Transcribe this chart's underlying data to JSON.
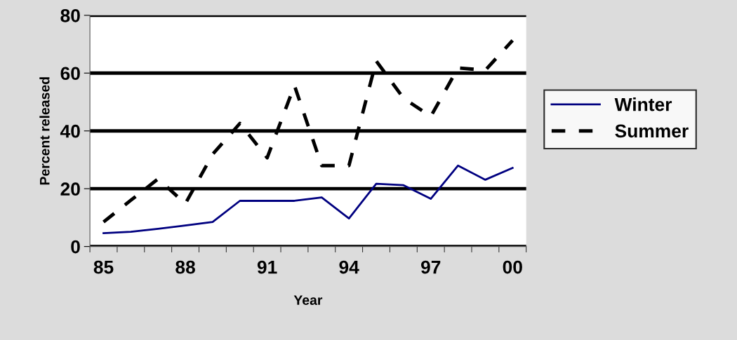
{
  "chart_data": {
    "type": "line",
    "xlabel": "Year",
    "ylabel": "Percent released",
    "categories": [
      "85",
      null,
      null,
      "88",
      null,
      null,
      "91",
      null,
      null,
      "94",
      null,
      null,
      "97",
      null,
      null,
      "00"
    ],
    "series": [
      {
        "name": "Winter",
        "color": "#000080",
        "line_style": "solid",
        "values": [
          4.6,
          5.1,
          6.1,
          7.3,
          8.5,
          15.8,
          15.8,
          15.8,
          17,
          9.7,
          21.7,
          21.2,
          16.5,
          28,
          23.1,
          27.2
        ]
      },
      {
        "name": "Summer",
        "color": "#000000",
        "line_style": "dashed",
        "values": [
          8.5,
          16,
          23.4,
          14.8,
          31.9,
          42.6,
          30.7,
          55.7,
          28,
          28,
          64.2,
          51.3,
          45,
          61.8,
          61,
          71.3
        ]
      }
    ],
    "ylim": [
      0,
      80
    ],
    "yticks": [
      0,
      20,
      40,
      60,
      80
    ],
    "grid": "y",
    "legend": "right",
    "marker": "none"
  }
}
